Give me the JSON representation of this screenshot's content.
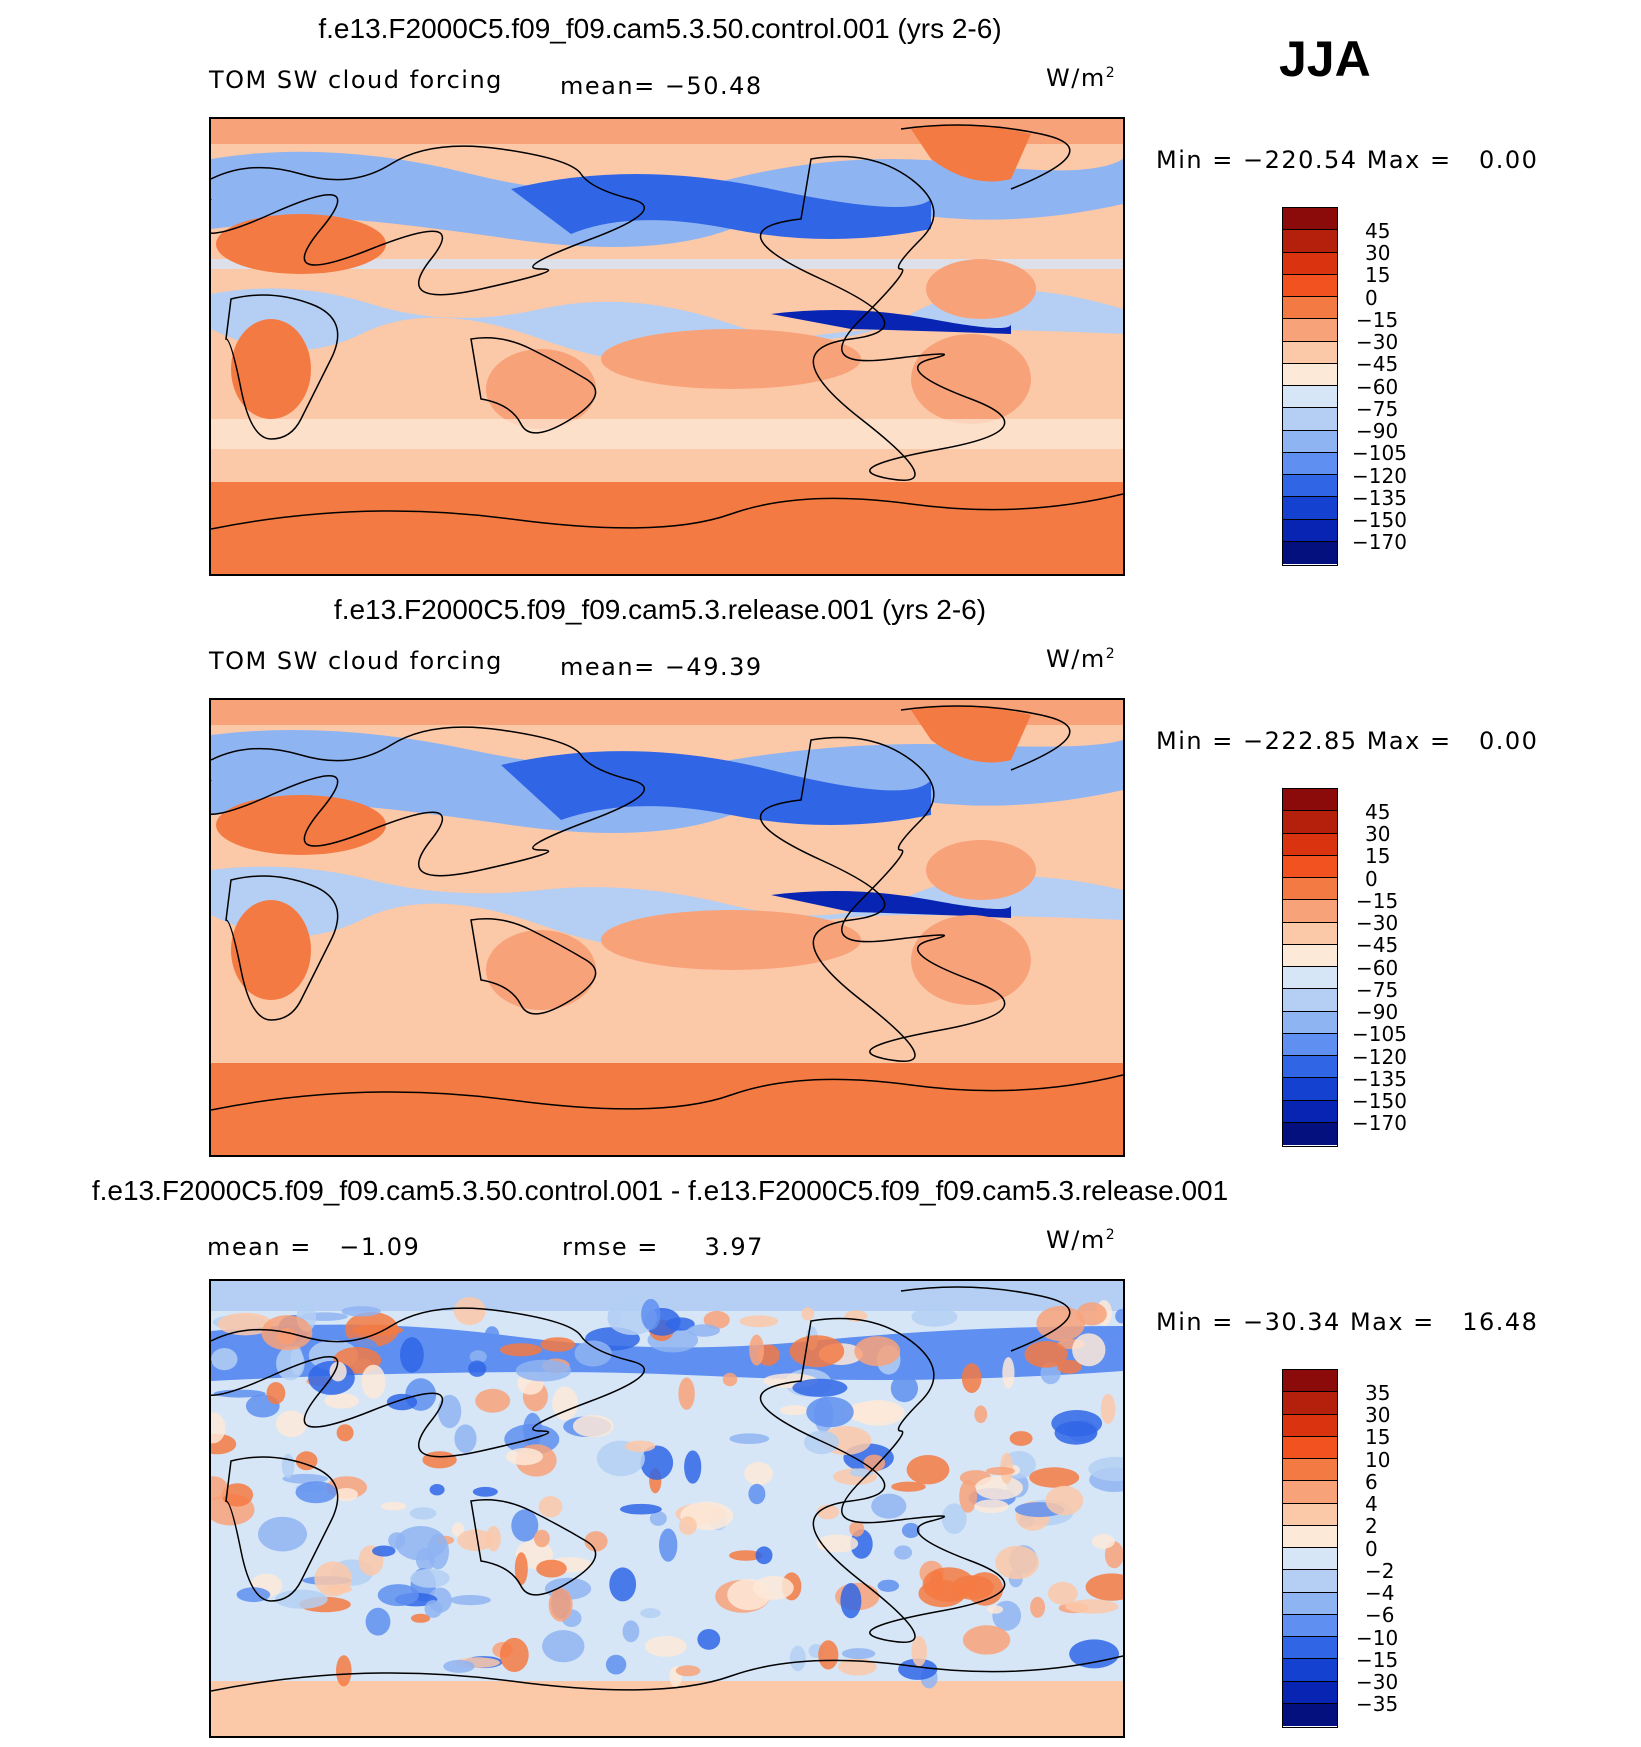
{
  "season": "JJA",
  "units_prefix": "W/m",
  "units_sup": "2",
  "panels": [
    {
      "title": "f.e13.F2000C5.f09_f09.cam5.3.50.control.001 (yrs 2-6)",
      "variable": "TOM SW cloud forcing",
      "mean_label": "mean=",
      "mean_value": "−50.48",
      "min_label": "Min =",
      "min_value": "−220.54",
      "max_label": "Max =",
      "max_value": "0.00",
      "colorbar_labels": [
        "45",
        "30",
        "15",
        "0",
        "−15",
        "−30",
        "−45",
        "−60",
        "−75",
        "−90",
        "−105",
        "−120",
        "−135",
        "−150",
        "−170"
      ],
      "colorbar_colors": [
        "#8b0a0a",
        "#b5200d",
        "#d9330f",
        "#f2521f",
        "#f47a43",
        "#f8a27a",
        "#fbc8a8",
        "#fde9d8",
        "#d6e6f7",
        "#b4cff3",
        "#8fb4f2",
        "#5f8ff0",
        "#3066e6",
        "#1541d1",
        "#0724b3",
        "#03107e"
      ]
    },
    {
      "title": "f.e13.F2000C5.f09_f09.cam5.3.release.001 (yrs 2-6)",
      "variable": "TOM SW cloud forcing",
      "mean_label": "mean=",
      "mean_value": "−49.39",
      "min_label": "Min =",
      "min_value": "−222.85",
      "max_label": "Max =",
      "max_value": "0.00",
      "colorbar_labels": [
        "45",
        "30",
        "15",
        "0",
        "−15",
        "−30",
        "−45",
        "−60",
        "−75",
        "−90",
        "−105",
        "−120",
        "−135",
        "−150",
        "−170"
      ],
      "colorbar_colors": [
        "#8b0a0a",
        "#b5200d",
        "#d9330f",
        "#f2521f",
        "#f47a43",
        "#f8a27a",
        "#fbc8a8",
        "#fde9d8",
        "#d6e6f7",
        "#b4cff3",
        "#8fb4f2",
        "#5f8ff0",
        "#3066e6",
        "#1541d1",
        "#0724b3",
        "#03107e"
      ]
    },
    {
      "title": "f.e13.F2000C5.f09_f09.cam5.3.50.control.001 - f.e13.F2000C5.f09_f09.cam5.3.release.001",
      "mean_label": "mean =",
      "mean_value": "−1.09",
      "rmse_label": "rmse =",
      "rmse_value": "3.97",
      "min_label": "Min =",
      "min_value": "−30.34",
      "max_label": "Max =",
      "max_value": "16.48",
      "colorbar_labels": [
        "35",
        "30",
        "15",
        "10",
        "6",
        "4",
        "2",
        "0",
        "−2",
        "−4",
        "−6",
        "−10",
        "−15",
        "−30",
        "−35"
      ],
      "colorbar_colors": [
        "#8b0a0a",
        "#b5200d",
        "#d9330f",
        "#f2521f",
        "#f47a43",
        "#f8a27a",
        "#fbc8a8",
        "#fde9d8",
        "#d6e6f7",
        "#b4cff3",
        "#8fb4f2",
        "#5f8ff0",
        "#3066e6",
        "#1541d1",
        "#0724b3",
        "#03107e"
      ]
    }
  ],
  "chart_data": [
    {
      "type": "heatmap",
      "title": "f.e13.F2000C5.f09_f09.cam5.3.50.control.001 (yrs 2-6)",
      "variable": "TOM SW cloud forcing",
      "units": "W/m2",
      "season": "JJA",
      "mean": -50.48,
      "min": -220.54,
      "max": 0.0,
      "levels": [
        -170,
        -150,
        -135,
        -120,
        -105,
        -90,
        -75,
        -60,
        -45,
        -30,
        -15,
        0,
        15,
        30,
        45
      ],
      "xlim": [
        0,
        360
      ],
      "ylim": [
        -90,
        90
      ]
    },
    {
      "type": "heatmap",
      "title": "f.e13.F2000C5.f09_f09.cam5.3.release.001 (yrs 2-6)",
      "variable": "TOM SW cloud forcing",
      "units": "W/m2",
      "season": "JJA",
      "mean": -49.39,
      "min": -222.85,
      "max": 0.0,
      "levels": [
        -170,
        -150,
        -135,
        -120,
        -105,
        -90,
        -75,
        -60,
        -45,
        -30,
        -15,
        0,
        15,
        30,
        45
      ],
      "xlim": [
        0,
        360
      ],
      "ylim": [
        -90,
        90
      ]
    },
    {
      "type": "heatmap",
      "title": "f.e13.F2000C5.f09_f09.cam5.3.50.control.001 - f.e13.F2000C5.f09_f09.cam5.3.release.001",
      "units": "W/m2",
      "season": "JJA",
      "mean": -1.09,
      "rmse": 3.97,
      "min": -30.34,
      "max": 16.48,
      "levels": [
        -35,
        -30,
        -15,
        -10,
        -6,
        -4,
        -2,
        0,
        2,
        4,
        6,
        10,
        15,
        30,
        35
      ],
      "xlim": [
        0,
        360
      ],
      "ylim": [
        -90,
        90
      ]
    }
  ]
}
